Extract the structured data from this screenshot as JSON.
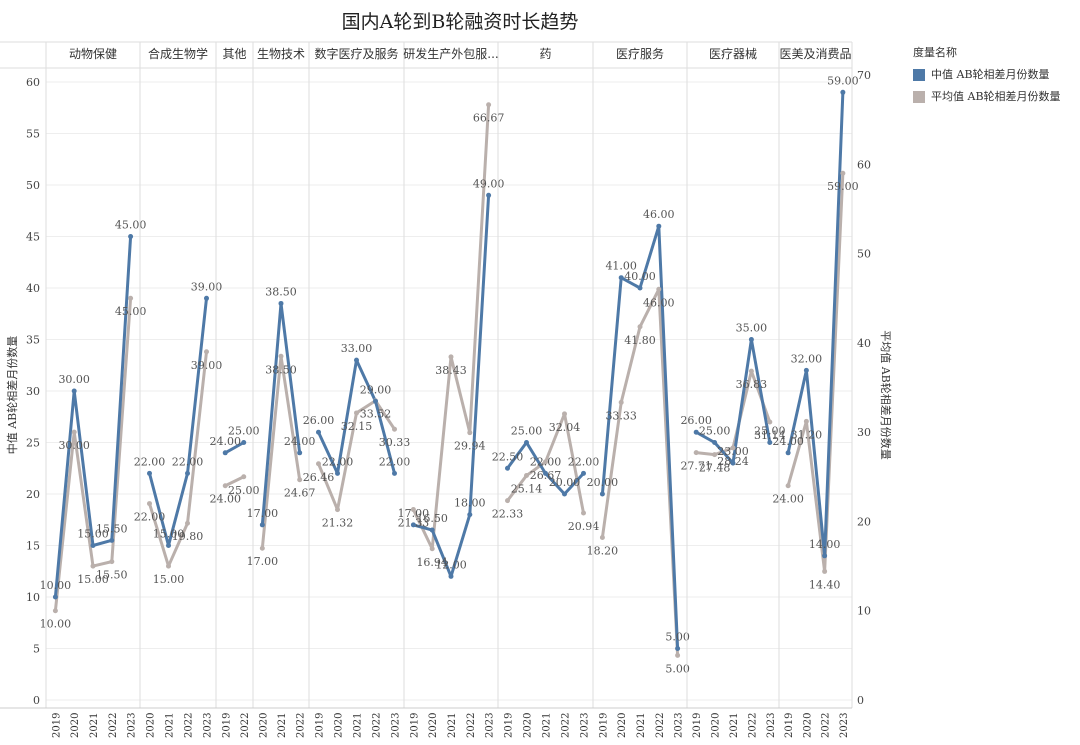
{
  "chart_data": {
    "type": "line",
    "title": "国内A轮到B轮融资时长趋势",
    "ylabel_left": "中值 AB轮相差月份数量",
    "ylabel_right": "平均值 AB轮相差月份数量",
    "ylim_left": [
      0,
      62
    ],
    "ylim_right": [
      0,
      72.33
    ],
    "yticks_left": [
      "0",
      "5",
      "10",
      "15",
      "20",
      "25",
      "30",
      "35",
      "40",
      "45",
      "50",
      "55",
      "60"
    ],
    "yticks_right": [
      "0",
      "10",
      "20",
      "30",
      "40",
      "50",
      "60",
      "70"
    ],
    "grid": true,
    "legend": {
      "title": "度量名称",
      "position": "right",
      "items": [
        {
          "name": "中值 AB轮相差月份数量",
          "color": "#4e79a7"
        },
        {
          "name": "平均值 AB轮相差月份数量",
          "color": "#bab0ac"
        }
      ]
    },
    "panels": [
      {
        "label": "动物保健",
        "years": [
          "2019",
          "2020",
          "2021",
          "2022",
          "2023"
        ],
        "median": [
          10.0,
          30.0,
          15.0,
          15.5,
          45.0
        ],
        "mean": [
          10.0,
          30.0,
          15.0,
          15.5,
          45.0
        ]
      },
      {
        "label": "合成生物学",
        "years": [
          "2020",
          "2021",
          "2022",
          "2023"
        ],
        "median": [
          22.0,
          15.0,
          22.0,
          39.0
        ],
        "mean": [
          22.0,
          15.0,
          19.8,
          39.0
        ]
      },
      {
        "label": "其他",
        "years": [
          "2019",
          "2022"
        ],
        "median": [
          24.0,
          25.0
        ],
        "mean": [
          24.0,
          25.0
        ]
      },
      {
        "label": "生物技术",
        "years": [
          "2020",
          "2021",
          "2022"
        ],
        "median": [
          17.0,
          38.5,
          24.0
        ],
        "mean": [
          17.0,
          38.5,
          24.67
        ]
      },
      {
        "label": "数字医疗及服务",
        "years": [
          "2019",
          "2020",
          "2021",
          "2022",
          "2023"
        ],
        "median": [
          26.0,
          22.0,
          33.0,
          29.0,
          22.0
        ],
        "mean": [
          26.46,
          21.32,
          32.15,
          33.52,
          30.33
        ]
      },
      {
        "label": "研发生产外包服...",
        "years": [
          "2019",
          "2020",
          "2021",
          "2022",
          "2023"
        ],
        "median": [
          17.0,
          16.5,
          12.0,
          18.0,
          49.0
        ],
        "mean": [
          21.33,
          16.94,
          38.43,
          29.94,
          66.67
        ]
      },
      {
        "label": "药",
        "years": [
          "2019",
          "2020",
          "2021",
          "2022",
          "2023"
        ],
        "median": [
          22.5,
          25.0,
          22.0,
          20.0,
          22.0
        ],
        "mean": [
          22.33,
          25.14,
          26.67,
          32.04,
          20.94
        ]
      },
      {
        "label": "医疗服务",
        "years": [
          "2019",
          "2020",
          "2021",
          "2022",
          "2023"
        ],
        "median": [
          20.0,
          41.0,
          40.0,
          46.0,
          5.0
        ],
        "mean": [
          18.2,
          33.33,
          41.8,
          46.0,
          5.0
        ]
      },
      {
        "label": "医疗器械",
        "years": [
          "2019",
          "2020",
          "2021",
          "2022",
          "2023"
        ],
        "median": [
          26.0,
          25.0,
          23.0,
          35.0,
          25.0
        ],
        "mean": [
          27.71,
          27.48,
          28.24,
          36.83,
          31.14
        ]
      },
      {
        "label": "医美及消费品",
        "years": [
          "2019",
          "2020",
          "2022",
          "2023"
        ],
        "median": [
          24.0,
          32.0,
          14.0,
          59.0
        ],
        "mean": [
          24.0,
          31.2,
          14.4,
          59.0
        ]
      }
    ]
  }
}
